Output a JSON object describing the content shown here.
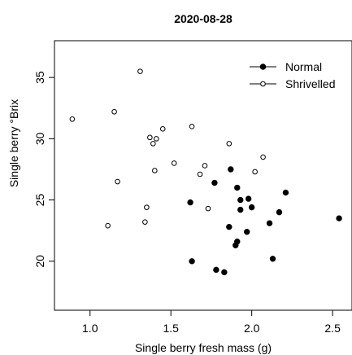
{
  "chart_data": {
    "type": "scatter",
    "title": "2020-08-28",
    "xlabel": "Single berry fresh mass (g)",
    "ylabel": "Single berry °Brix",
    "xlim": [
      0.78,
      2.62
    ],
    "ylim": [
      16.0,
      38.0
    ],
    "xticks": [
      "1.0",
      "1.5",
      "2.0",
      "2.5"
    ],
    "yticks": [
      "20",
      "25",
      "30",
      "35"
    ],
    "grid": false,
    "legend": "top-right",
    "series": [
      {
        "name": "Normal",
        "marker": "filled-circle",
        "color": "#000000",
        "points": [
          [
            1.62,
            24.8
          ],
          [
            1.77,
            26.4
          ],
          [
            1.87,
            27.5
          ],
          [
            1.63,
            20.0
          ],
          [
            1.78,
            19.3
          ],
          [
            1.83,
            19.1
          ],
          [
            1.86,
            22.8
          ],
          [
            1.9,
            21.3
          ],
          [
            1.91,
            21.6
          ],
          [
            1.91,
            26.0
          ],
          [
            1.93,
            25.0
          ],
          [
            1.93,
            24.2
          ],
          [
            1.97,
            22.4
          ],
          [
            1.98,
            25.1
          ],
          [
            2.0,
            24.4
          ],
          [
            2.11,
            23.1
          ],
          [
            2.13,
            20.2
          ],
          [
            2.17,
            24.0
          ],
          [
            2.21,
            25.6
          ],
          [
            2.54,
            23.5
          ]
        ]
      },
      {
        "name": "Shrivelled",
        "marker": "open-circle",
        "color": "#000000",
        "points": [
          [
            0.89,
            31.6
          ],
          [
            1.11,
            22.9
          ],
          [
            1.15,
            32.2
          ],
          [
            1.17,
            26.5
          ],
          [
            1.31,
            35.5
          ],
          [
            1.34,
            23.2
          ],
          [
            1.35,
            24.4
          ],
          [
            1.37,
            30.1
          ],
          [
            1.39,
            29.6
          ],
          [
            1.4,
            27.4
          ],
          [
            1.41,
            30.0
          ],
          [
            1.45,
            30.8
          ],
          [
            1.52,
            28.0
          ],
          [
            1.63,
            31.0
          ],
          [
            1.68,
            27.1
          ],
          [
            1.71,
            27.8
          ],
          [
            1.73,
            24.3
          ],
          [
            1.86,
            29.6
          ],
          [
            2.02,
            27.3
          ],
          [
            2.07,
            28.5
          ]
        ]
      }
    ]
  }
}
